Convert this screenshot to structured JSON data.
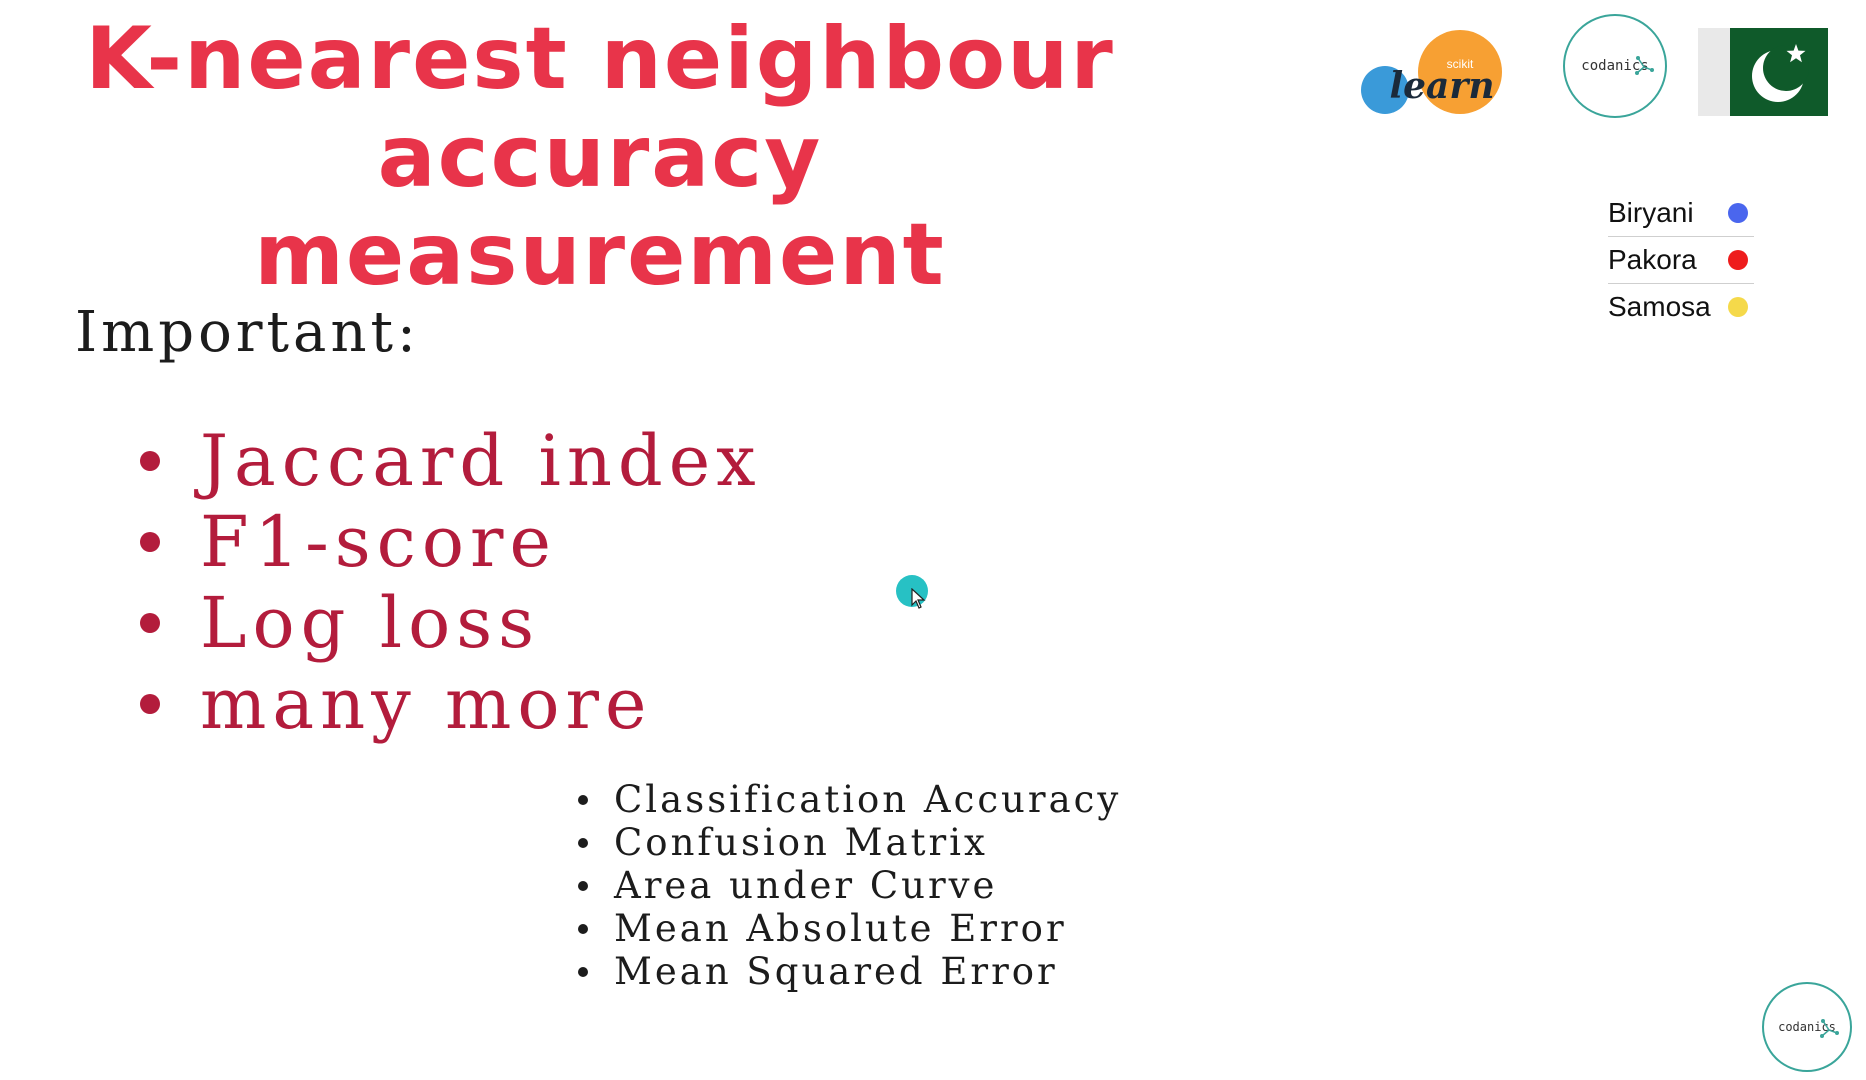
{
  "slide": {
    "title_lines": [
      "K-nearest neighbour",
      "accuracy measurement"
    ],
    "important_label": "Important:",
    "main_items": [
      "Jaccard index",
      "F1-score",
      "Log loss",
      "many more"
    ],
    "sub_items": [
      "Classification Accuracy",
      "Confusion Matrix",
      "Area under Curve",
      "Mean Absolute Error",
      "Mean Squared Error"
    ]
  },
  "logos": {
    "sklearn": {
      "small": "scikit",
      "main": "learn"
    },
    "codanics_top": "codanics",
    "codanics_bottom": "codanics"
  },
  "legend": [
    {
      "label": "Biryani",
      "color": "#4a66ee"
    },
    {
      "label": "Pakora",
      "color": "#ee1c1c"
    },
    {
      "label": "Samosa",
      "color": "#f5d94a"
    }
  ],
  "colors": {
    "title": "#e8344a",
    "bullets": "#b31c3c",
    "flag_green": "#0f5a2a",
    "cursor_highlight": "#27c1c4"
  },
  "icons": {
    "flag": "pakistan-flag-icon",
    "cursor": "mouse-cursor-icon"
  }
}
